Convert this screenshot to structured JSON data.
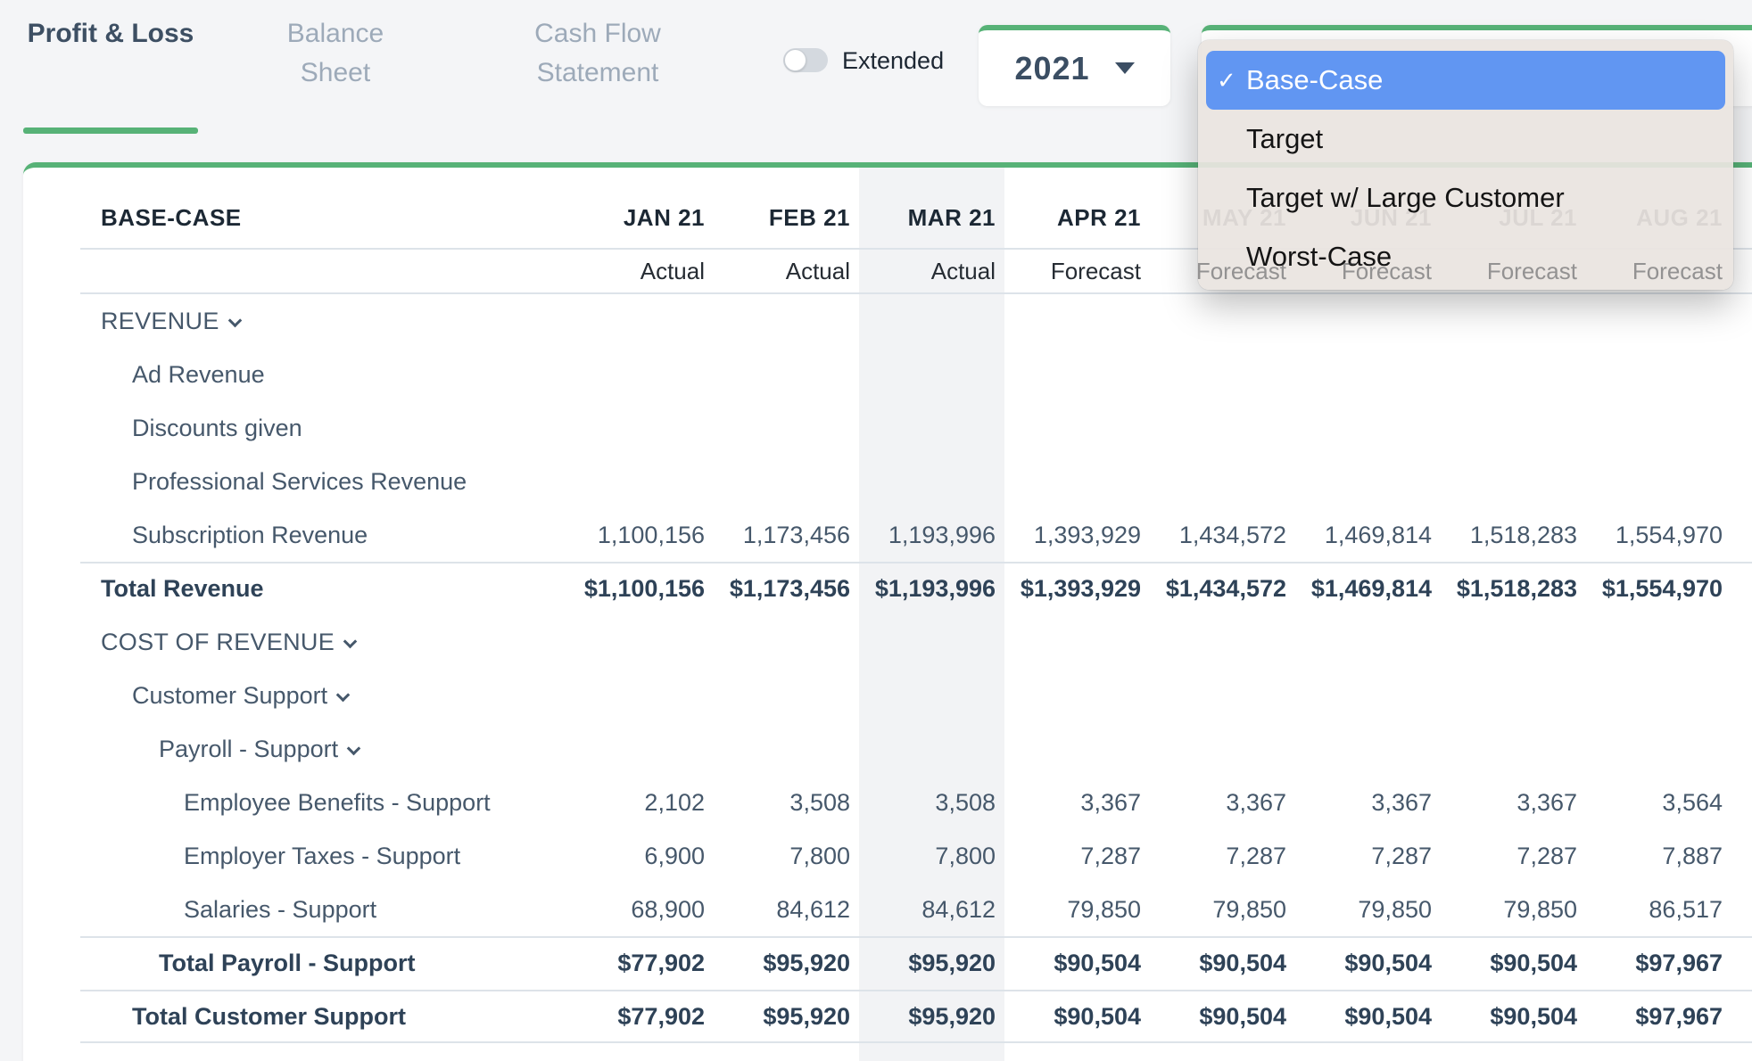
{
  "tabs": [
    {
      "label": "Profit & Loss",
      "active": true
    },
    {
      "label": "Balance Sheet",
      "active": false
    },
    {
      "label": "Cash Flow Statement",
      "active": false
    }
  ],
  "toggle": {
    "label": "Extended",
    "on": false
  },
  "year_select": {
    "value": "2021"
  },
  "scenario_select": {
    "value": "Base-Case",
    "open": true,
    "check_glyph": "✓",
    "selected_index": 0,
    "options": [
      "Base-Case",
      "Target",
      "Target w/ Large Customer",
      "Worst-Case"
    ]
  },
  "table": {
    "scenario_header": "BASE-CASE",
    "months": [
      "JAN 21",
      "FEB 21",
      "MAR 21",
      "APR 21",
      "MAY 21",
      "JUN 21",
      "JUL 21",
      "AUG 21"
    ],
    "period_types": [
      "Actual",
      "Actual",
      "Actual",
      "Forecast",
      "Forecast",
      "Forecast",
      "Forecast",
      "Forecast"
    ],
    "highlighted_month": "MAR 21",
    "rows": [
      {
        "type": "section",
        "indent": 0,
        "label": "REVENUE",
        "chevron": true,
        "values": [
          "",
          "",
          "",
          "",
          "",
          "",
          "",
          ""
        ]
      },
      {
        "type": "item",
        "indent": 1,
        "label": "Ad Revenue",
        "values": [
          "",
          "",
          "",
          "",
          "",
          "",
          "",
          ""
        ]
      },
      {
        "type": "item",
        "indent": 1,
        "label": "Discounts given",
        "values": [
          "",
          "",
          "",
          "",
          "",
          "",
          "",
          ""
        ]
      },
      {
        "type": "item",
        "indent": 1,
        "label": "Professional Services Revenue",
        "values": [
          "",
          "",
          "",
          "",
          "",
          "",
          "",
          ""
        ]
      },
      {
        "type": "item",
        "indent": 1,
        "label": "Subscription Revenue",
        "values": [
          "1,100,156",
          "1,173,456",
          "1,193,996",
          "1,393,929",
          "1,434,572",
          "1,469,814",
          "1,518,283",
          "1,554,970"
        ]
      },
      {
        "type": "total",
        "indent": 0,
        "label": "Total Revenue",
        "values": [
          "$1,100,156",
          "$1,173,456",
          "$1,193,996",
          "$1,393,929",
          "$1,434,572",
          "$1,469,814",
          "$1,518,283",
          "$1,554,970"
        ]
      },
      {
        "type": "section",
        "indent": 0,
        "label": "COST OF REVENUE",
        "chevron": true,
        "values": [
          "",
          "",
          "",
          "",
          "",
          "",
          "",
          ""
        ]
      },
      {
        "type": "group",
        "indent": 1,
        "label": "Customer Support",
        "chevron": true,
        "values": [
          "",
          "",
          "",
          "",
          "",
          "",
          "",
          ""
        ]
      },
      {
        "type": "group",
        "indent": 2,
        "label": "Payroll - Support",
        "chevron": true,
        "values": [
          "",
          "",
          "",
          "",
          "",
          "",
          "",
          ""
        ]
      },
      {
        "type": "item",
        "indent": 3,
        "label": "Employee Benefits - Support",
        "values": [
          "2,102",
          "3,508",
          "3,508",
          "3,367",
          "3,367",
          "3,367",
          "3,367",
          "3,564"
        ]
      },
      {
        "type": "item",
        "indent": 3,
        "label": "Employer Taxes - Support",
        "values": [
          "6,900",
          "7,800",
          "7,800",
          "7,287",
          "7,287",
          "7,287",
          "7,287",
          "7,887"
        ]
      },
      {
        "type": "item",
        "indent": 3,
        "label": "Salaries - Support",
        "values": [
          "68,900",
          "84,612",
          "84,612",
          "79,850",
          "79,850",
          "79,850",
          "79,850",
          "86,517"
        ]
      },
      {
        "type": "total",
        "indent": 2,
        "label": "Total Payroll - Support",
        "values": [
          "$77,902",
          "$95,920",
          "$95,920",
          "$90,504",
          "$90,504",
          "$90,504",
          "$90,504",
          "$97,967"
        ]
      },
      {
        "type": "total",
        "indent": 1,
        "label": "Total Customer Support",
        "values": [
          "$77,902",
          "$95,920",
          "$95,920",
          "$90,504",
          "$90,504",
          "$90,504",
          "$90,504",
          "$97,967"
        ]
      }
    ]
  },
  "colors": {
    "accent_green": "#57b277",
    "selected_blue": "#6196f2",
    "page_background": "#f4f5f7",
    "card_background": "#ffffff",
    "heading_text": "#1c2834",
    "body_text": "#46586b",
    "total_text": "#2e4257",
    "inactive_tab": "#9daab9",
    "highlight_column": "#f2f3f5",
    "menu_background": "#e9e4e0"
  }
}
